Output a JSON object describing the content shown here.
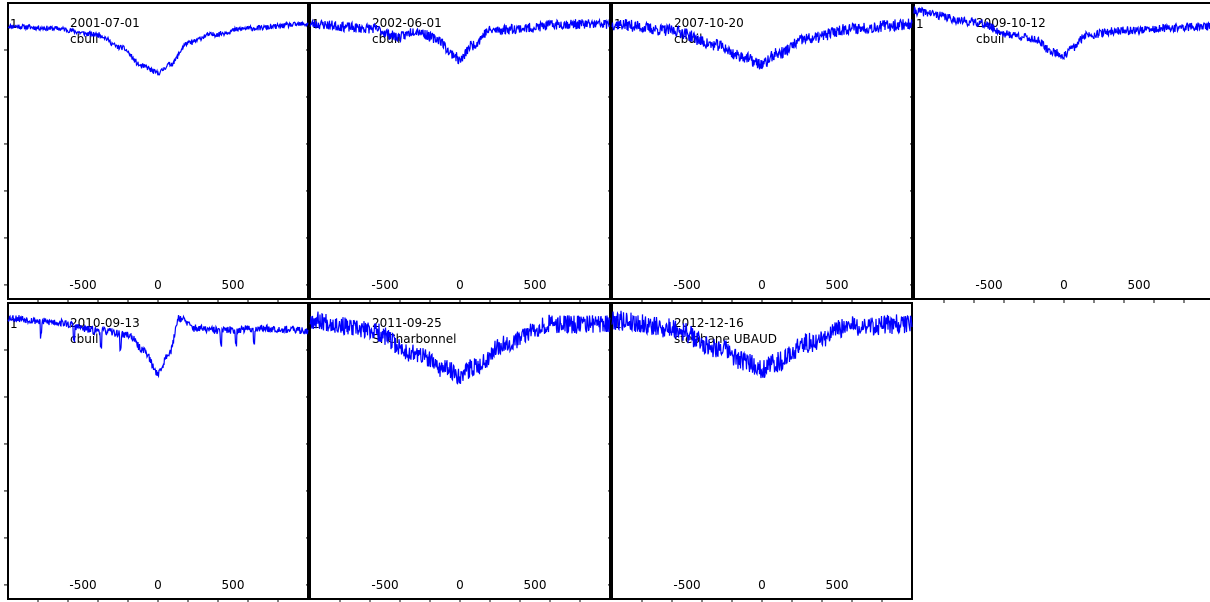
{
  "colors": {
    "line": "#0000ff",
    "frame": "#000000",
    "background": "#ffffff"
  },
  "shared_axes": {
    "x_tick_labels": [
      "-500",
      "0",
      "500"
    ],
    "x_tick_values": [
      -500,
      0,
      500
    ],
    "y_label_value": "1"
  },
  "chart_data": [
    {
      "type": "line",
      "date": "2001-07-01",
      "observer": "cbuil",
      "xlim": [
        -1000,
        1000
      ],
      "ylim": [
        0.35,
        1.05
      ],
      "noise": 0.006,
      "seed": 11,
      "series": [
        {
          "x": [
            -1000,
            -700,
            -400,
            -250,
            -100,
            0,
            80,
            200,
            350,
            600,
            1000
          ],
          "y": [
            0.995,
            0.99,
            0.975,
            0.945,
            0.9,
            0.885,
            0.905,
            0.955,
            0.975,
            0.99,
            1.0
          ]
        }
      ]
    },
    {
      "type": "line",
      "date": "2002-06-01",
      "observer": "cbuil",
      "xlim": [
        -1000,
        1000
      ],
      "ylim": [
        0.35,
        1.05
      ],
      "noise": 0.012,
      "seed": 23,
      "series": [
        {
          "x": [
            -1000,
            -600,
            -400,
            -300,
            -150,
            -50,
            0,
            80,
            200,
            400,
            700,
            1000
          ],
          "y": [
            1.0,
            0.99,
            0.97,
            0.985,
            0.965,
            0.93,
            0.915,
            0.95,
            0.985,
            0.99,
            1.0,
            1.0
          ]
        }
      ]
    },
    {
      "type": "line",
      "date": "2007-10-20",
      "observer": "cbuil",
      "xlim": [
        -1000,
        1000
      ],
      "ylim": [
        0.35,
        1.05
      ],
      "noise": 0.014,
      "seed": 37,
      "series": [
        {
          "x": [
            -1000,
            -600,
            -300,
            -150,
            0,
            100,
            300,
            600,
            1000
          ],
          "y": [
            1.0,
            0.985,
            0.95,
            0.925,
            0.905,
            0.93,
            0.965,
            0.99,
            1.0
          ]
        }
      ]
    },
    {
      "type": "line",
      "date": "2009-10-12",
      "observer": "cbuil",
      "xlim": [
        -1000,
        1000
      ],
      "ylim": [
        0.35,
        1.05
      ],
      "noise": 0.01,
      "seed": 41,
      "series": [
        {
          "x": [
            -1000,
            -600,
            -350,
            -200,
            -80,
            0,
            60,
            150,
            400,
            1000
          ],
          "y": [
            1.03,
            1.005,
            0.975,
            0.965,
            0.935,
            0.925,
            0.945,
            0.975,
            0.985,
            0.995
          ]
        }
      ]
    },
    {
      "type": "line",
      "date": "2010-09-13",
      "observer": "cbuil",
      "xlim": [
        -1000,
        1000
      ],
      "ylim": [
        0.35,
        1.05
      ],
      "noise": 0.009,
      "seed": 53,
      "series": [
        {
          "x": [
            -1000,
            -700,
            -400,
            -200,
            -100,
            0,
            80,
            140,
            250,
            400,
            700,
            1000
          ],
          "y": [
            1.015,
            1.005,
            0.985,
            0.975,
            0.94,
            0.885,
            0.935,
            1.015,
            0.99,
            0.985,
            0.99,
            0.985
          ]
        }
      ],
      "dips_x": [
        -780,
        -560,
        -380,
        -250,
        420,
        520,
        640
      ]
    },
    {
      "type": "line",
      "date": "2011-09-25",
      "observer": "S. Charbonnel",
      "xlim": [
        -1000,
        1000
      ],
      "ylim": [
        0.35,
        1.05
      ],
      "noise": 0.022,
      "seed": 67,
      "series": [
        {
          "x": [
            -1000,
            -600,
            -300,
            -100,
            0,
            100,
            300,
            600,
            1000
          ],
          "y": [
            1.01,
            0.985,
            0.93,
            0.895,
            0.88,
            0.9,
            0.955,
            1.0,
            1.0
          ]
        }
      ]
    },
    {
      "type": "line",
      "date": "2012-12-16",
      "observer": "stephane UBAUD",
      "xlim": [
        -1000,
        1000
      ],
      "ylim": [
        0.35,
        1.05
      ],
      "noise": 0.024,
      "seed": 79,
      "series": [
        {
          "x": [
            -1000,
            -600,
            -300,
            -100,
            0,
            100,
            300,
            600,
            1000
          ],
          "y": [
            1.01,
            0.99,
            0.945,
            0.91,
            0.895,
            0.91,
            0.955,
            0.995,
            1.0
          ]
        }
      ]
    }
  ]
}
